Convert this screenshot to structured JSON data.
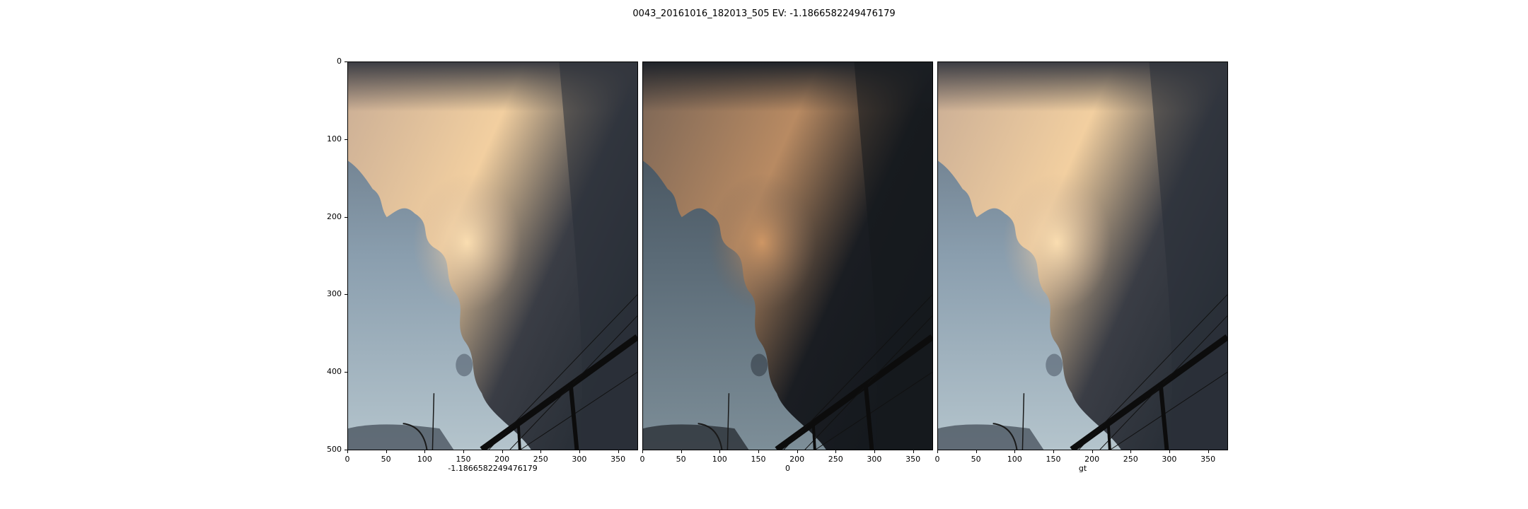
{
  "figure": {
    "title": "0043_20161016_182013_505 EV: -1.1866582249476179"
  },
  "chart_data": [
    {
      "type": "image",
      "xlabel": "-1.1866582249476179",
      "xlim": [
        0,
        376
      ],
      "ylim": [
        0,
        501
      ],
      "xticks": [
        0,
        50,
        100,
        150,
        200,
        250,
        300,
        350
      ],
      "yticks": [
        0,
        100,
        200,
        300,
        400,
        500
      ],
      "image_content": "sky photo with large sunset-lit cloud mass, power lines and street lamp",
      "exposure": "bright"
    },
    {
      "type": "image",
      "xlabel": "0",
      "xlim": [
        0,
        376
      ],
      "ylim": [
        0,
        501
      ],
      "xticks": [
        0,
        50,
        100,
        150,
        200,
        250,
        300,
        350
      ],
      "yticks": [],
      "image_content": "same scene, darker exposure",
      "exposure": "dark"
    },
    {
      "type": "image",
      "xlabel": "gt",
      "xlim": [
        0,
        376
      ],
      "ylim": [
        0,
        501
      ],
      "xticks": [
        0,
        50,
        100,
        150,
        200,
        250,
        300,
        350
      ],
      "yticks": [],
      "image_content": "same scene, ground-truth exposure",
      "exposure": "bright"
    }
  ]
}
